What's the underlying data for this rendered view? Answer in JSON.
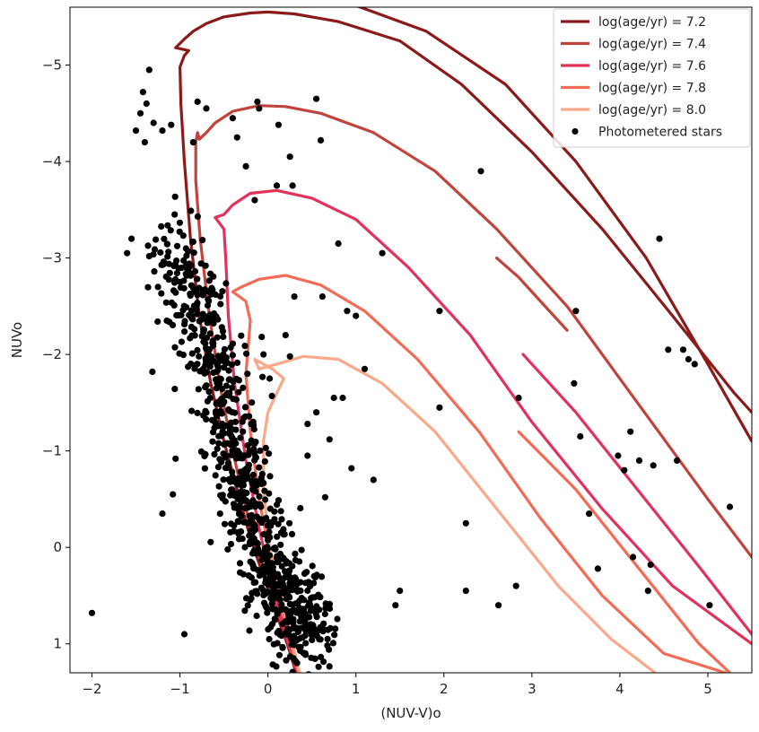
{
  "chart_data": {
    "type": "scatter",
    "title": "",
    "xlabel": "(NUV-V)o",
    "ylabel": "NUVo",
    "xlim": [
      -2.25,
      5.5
    ],
    "ylim": [
      1.3,
      -5.6
    ],
    "y_inverted": true,
    "grid": false,
    "legend_placement": "top-right",
    "x_ticks": [
      -2,
      -1,
      0,
      1,
      2,
      3,
      4,
      5
    ],
    "y_ticks": [
      1,
      0,
      -1,
      -2,
      -3,
      -4,
      -5
    ],
    "x_tick_labels": [
      "−2",
      "−1",
      "0",
      "1",
      "2",
      "3",
      "4",
      "5"
    ],
    "y_tick_labels": [
      "1",
      "0",
      "−1",
      "−2",
      "−3",
      "−4",
      "−5"
    ],
    "series": [
      {
        "name": "log(age/yr) = 7.2",
        "kind": "line",
        "color": "#8b1a1a",
        "x": [
          0.32,
          0.22,
          0.1,
          -0.05,
          -0.2,
          -0.35,
          -0.5,
          -0.65,
          -0.78,
          -0.88,
          -0.95,
          -0.99,
          -1.0,
          -0.95,
          -0.9,
          -1.05,
          -0.95,
          -0.85,
          -0.7,
          -0.5,
          -0.2,
          0.0,
          0.3,
          0.8,
          1.5,
          2.2,
          3.0,
          3.8,
          4.6,
          5.3,
          5.5
        ],
        "y": [
          1.3,
          1.0,
          0.7,
          0.3,
          -0.1,
          -0.6,
          -1.1,
          -1.7,
          -2.4,
          -3.2,
          -4.0,
          -4.6,
          -4.98,
          -5.1,
          -5.15,
          -5.18,
          -5.27,
          -5.35,
          -5.43,
          -5.5,
          -5.54,
          -5.55,
          -5.53,
          -5.45,
          -5.25,
          -4.8,
          -4.1,
          -3.3,
          -2.4,
          -1.6,
          -1.4
        ],
        "tail_x": [
          0.9,
          1.8,
          2.7,
          3.5,
          4.3,
          5.0,
          5.5
        ],
        "tail_y": [
          -5.65,
          -5.35,
          -4.8,
          -4.0,
          -3.0,
          -1.9,
          -1.1
        ]
      },
      {
        "name": "log(age/yr) = 7.4",
        "kind": "line",
        "color": "#c0443c",
        "x": [
          0.33,
          0.2,
          0.05,
          -0.1,
          -0.25,
          -0.4,
          -0.55,
          -0.68,
          -0.77,
          -0.82,
          -0.82,
          -0.8,
          -0.78,
          -0.7,
          -0.6,
          -0.4,
          -0.1,
          0.2,
          0.6,
          1.2,
          1.9,
          2.6,
          3.4,
          4.2,
          5.0,
          5.5
        ],
        "y": [
          1.3,
          0.9,
          0.5,
          0.1,
          -0.4,
          -1.0,
          -1.7,
          -2.5,
          -3.2,
          -3.8,
          -4.2,
          -4.3,
          -4.23,
          -4.3,
          -4.4,
          -4.52,
          -4.58,
          -4.57,
          -4.5,
          -4.3,
          -3.9,
          -3.3,
          -2.5,
          -1.5,
          -0.5,
          0.1
        ],
        "tail_x": [
          2.6,
          2.85,
          3.1,
          3.4
        ],
        "tail_y": [
          -3.0,
          -2.8,
          -2.55,
          -2.25
        ]
      },
      {
        "name": "log(age/yr) = 7.6",
        "kind": "line",
        "color": "#e0325a",
        "x": [
          0.34,
          0.2,
          0.05,
          -0.1,
          -0.25,
          -0.38,
          -0.45,
          -0.48,
          -0.5,
          -0.6,
          -0.5,
          -0.4,
          -0.2,
          0.1,
          0.5,
          1.0,
          1.6,
          2.3,
          3.0,
          3.8,
          4.6,
          5.5
        ],
        "y": [
          1.3,
          0.9,
          0.4,
          -0.2,
          -0.9,
          -1.7,
          -2.4,
          -3.0,
          -3.3,
          -3.42,
          -3.45,
          -3.55,
          -3.67,
          -3.7,
          -3.62,
          -3.4,
          -2.9,
          -2.2,
          -1.3,
          -0.4,
          0.4,
          1.0
        ],
        "tail_x": [
          2.9,
          3.5,
          4.2,
          4.9,
          5.5
        ],
        "tail_y": [
          -2.0,
          -1.4,
          -0.6,
          0.2,
          0.9
        ]
      },
      {
        "name": "log(age/yr) = 7.8",
        "kind": "line",
        "color": "#f36b55",
        "x": [
          0.35,
          0.2,
          0.05,
          -0.1,
          -0.2,
          -0.25,
          -0.2,
          -0.25,
          -0.4,
          -0.3,
          -0.1,
          0.2,
          0.6,
          1.1,
          1.7,
          2.4,
          3.1,
          3.8,
          4.5,
          5.2
        ],
        "y": [
          1.3,
          0.8,
          0.2,
          -0.5,
          -1.2,
          -1.8,
          -2.35,
          -2.55,
          -2.65,
          -2.7,
          -2.78,
          -2.82,
          -2.72,
          -2.45,
          -1.95,
          -1.2,
          -0.3,
          0.5,
          1.1,
          1.3
        ],
        "tail_x": [
          2.85,
          3.5,
          4.2,
          4.9,
          5.25
        ],
        "tail_y": [
          -1.2,
          -0.6,
          0.2,
          1.0,
          1.3
        ]
      },
      {
        "name": "log(age/yr) = 8.0",
        "kind": "line",
        "color": "#f9a98a",
        "x": [
          0.36,
          0.2,
          0.02,
          -0.05,
          -0.05,
          0.0,
          0.1,
          0.18,
          0.05,
          -0.15,
          -0.1,
          0.1,
          0.4,
          0.8,
          1.3,
          1.9,
          2.6,
          3.3,
          3.9,
          4.4
        ],
        "y": [
          1.3,
          0.7,
          0.0,
          -0.6,
          -1.1,
          -1.4,
          -1.6,
          -1.75,
          -1.85,
          -1.95,
          -1.85,
          -1.9,
          -1.98,
          -1.95,
          -1.7,
          -1.2,
          -0.4,
          0.4,
          0.95,
          1.3
        ],
        "tail_x": [],
        "tail_y": []
      },
      {
        "name": "Photometered stars",
        "kind": "scatter",
        "color": "#000000",
        "x": [
          -2.0,
          -1.35,
          -1.42,
          -1.38,
          -1.45,
          -1.5,
          -1.4,
          -1.3,
          -1.2,
          -1.1,
          -1.55,
          -1.6,
          -1.25,
          -1.15,
          -0.85,
          -0.8,
          -0.7,
          -0.4,
          -0.35,
          -0.12,
          -0.1,
          0.12,
          0.55,
          0.6,
          0.25,
          -0.25,
          0.1,
          0.28,
          -0.15,
          0.8,
          0.3,
          0.9,
          1.0,
          1.1,
          1.3,
          0.85,
          0.62,
          0.2,
          0.25,
          -0.05,
          0.02,
          0.45,
          0.45,
          0.55,
          0.75,
          1.2,
          1.45,
          1.5,
          1.95,
          1.95,
          2.25,
          2.25,
          2.42,
          2.62,
          2.82,
          2.85,
          3.5,
          3.48,
          3.55,
          3.65,
          3.75,
          3.98,
          4.05,
          4.12,
          4.15,
          4.22,
          4.32,
          4.35,
          4.38,
          4.45,
          4.55,
          4.65,
          4.72,
          4.78,
          4.85,
          5.02,
          5.25,
          0.65,
          0.95,
          0.7,
          -1.05,
          -1.08,
          -1.2,
          -0.95
        ],
        "y": [
          0.68,
          -4.95,
          -4.72,
          -4.6,
          -4.5,
          -4.32,
          -4.2,
          -4.4,
          -4.32,
          -4.38,
          -3.2,
          -3.05,
          -2.7,
          -2.35,
          -4.2,
          -4.62,
          -4.55,
          -4.45,
          -4.25,
          -4.62,
          -4.55,
          -4.38,
          -4.65,
          -4.22,
          -4.05,
          -3.95,
          -3.75,
          -3.75,
          -3.6,
          -3.15,
          -2.6,
          -2.45,
          -2.4,
          -1.85,
          -3.05,
          -1.55,
          -2.6,
          -2.2,
          -1.98,
          -2.0,
          -1.75,
          -1.28,
          -0.95,
          -1.4,
          -1.55,
          -0.7,
          0.6,
          0.45,
          -1.45,
          -2.45,
          -0.25,
          0.45,
          -3.9,
          0.6,
          0.4,
          -1.55,
          -2.45,
          -1.7,
          -1.15,
          -0.35,
          0.22,
          -0.95,
          -0.8,
          -1.2,
          0.1,
          -0.9,
          0.45,
          0.18,
          -0.85,
          -3.2,
          -2.05,
          -0.9,
          -2.05,
          -1.95,
          -1.9,
          0.6,
          -0.42,
          -0.52,
          -0.82,
          -1.12,
          -0.92,
          -0.55,
          -0.35,
          0.9
        ],
        "cluster": {
          "description": "dense main-sequence concentration of roughly 900 stars",
          "center_x": [
            -1.0,
            -0.85,
            -0.7,
            -0.55,
            -0.45,
            -0.35,
            -0.25,
            -0.15,
            -0.05,
            0.05,
            0.15,
            0.25,
            0.35,
            0.45
          ],
          "center_y": [
            -3.0,
            -2.6,
            -2.1,
            -1.7,
            -1.3,
            -0.95,
            -0.6,
            -0.3,
            0.0,
            0.25,
            0.45,
            0.6,
            0.75,
            0.9
          ],
          "spread_x": 0.32,
          "spread_y": 0.22,
          "count_per_node": 62
        }
      }
    ]
  }
}
